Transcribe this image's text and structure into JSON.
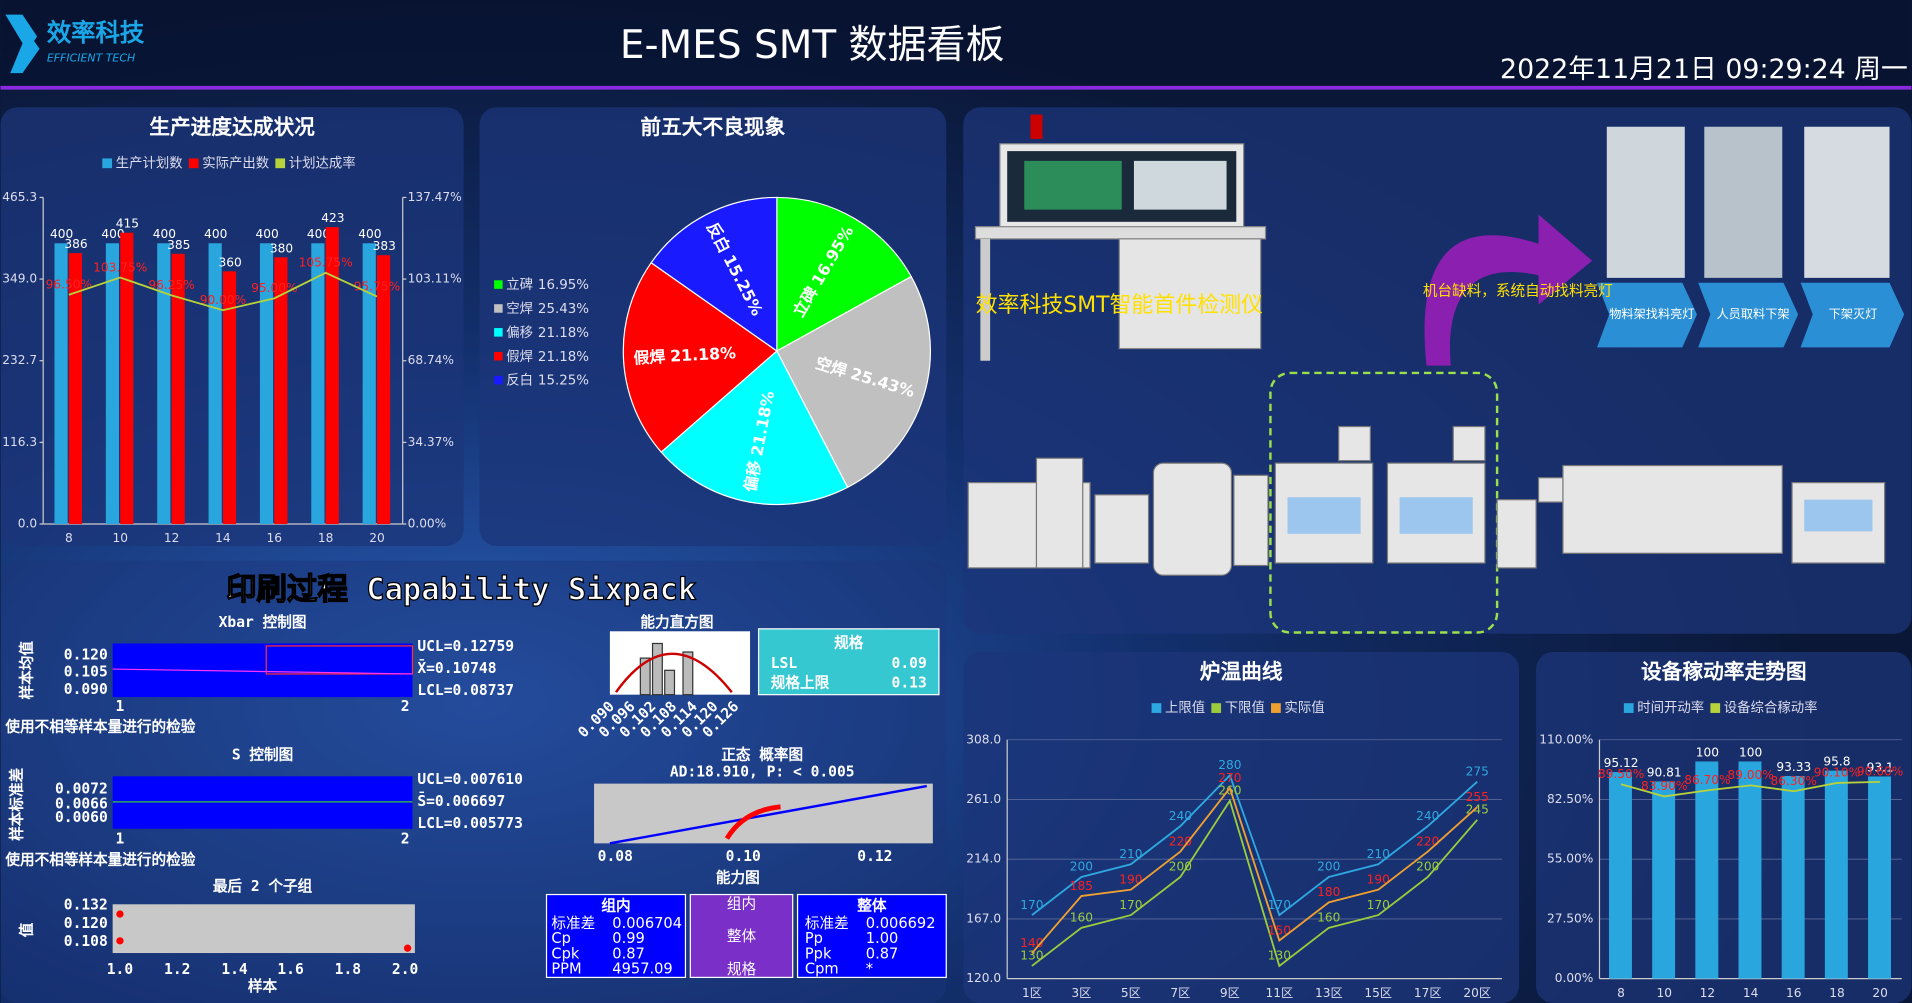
{
  "header": {
    "logo_cn": "效率科技",
    "logo_en": "EFFICIENT TECH",
    "title": "E-MES SMT 数据看板",
    "datetime": "2022年11月21日 09:29:24 周一"
  },
  "chart_data": [
    {
      "type": "combo",
      "title": "生产进度达成状况",
      "categories": [
        "8",
        "10",
        "12",
        "14",
        "16",
        "18",
        "20"
      ],
      "series": [
        {
          "name": "生产计划数",
          "type": "bar",
          "color": "#2aa6df",
          "values": [
            400,
            400,
            400,
            400,
            400,
            400,
            400
          ]
        },
        {
          "name": "实际产出数",
          "type": "bar",
          "color": "#ff0000",
          "values": [
            386,
            415,
            385,
            360,
            380,
            423,
            383
          ]
        },
        {
          "name": "计划达成率",
          "type": "line",
          "axis": "y2",
          "color": "#b7d23a",
          "label_color": "#ff2020",
          "values": [
            96.5,
            103.75,
            96.25,
            90,
            95,
            105.75,
            95.75
          ],
          "value_labels": [
            "96.50%",
            "103.75%",
            "96.25%",
            "90.00%",
            "95.00%",
            "105.75%",
            "95.75%"
          ]
        }
      ],
      "ylim": [
        0,
        465.3
      ],
      "yticks": [
        {
          "value": 0,
          "label": "0.0"
        },
        116.3,
        232.7,
        {
          "value": 349,
          "label": "349.0"
        },
        465.3
      ],
      "y2lim": [
        0,
        137.47
      ],
      "y2ticks": [
        {
          "value": 0,
          "label": "0.00%"
        },
        {
          "value": 34.37,
          "label": "34.37%"
        },
        {
          "value": 68.74,
          "label": "68.74%"
        },
        {
          "value": 103.11,
          "label": "103.11%"
        },
        {
          "value": 137.47,
          "label": "137.47%"
        }
      ],
      "grid": false,
      "legend": "top"
    },
    {
      "type": "pie",
      "title": "前五大不良现象",
      "categories": [
        "立碑",
        "空焊",
        "偏移",
        "假焊",
        "反白"
      ],
      "values": [
        16.95,
        25.43,
        21.18,
        21.18,
        15.25
      ],
      "value_labels": [
        "16.95%",
        "25.43%",
        "21.18%",
        "21.18%",
        "15.25%"
      ],
      "colors": [
        "#00ff00",
        "#c0c0c0",
        "#00ffff",
        "#ff0000",
        "#1a1aff"
      ],
      "legend": "left"
    },
    {
      "type": "line",
      "title": "炉温曲线",
      "categories": [
        "1区",
        "3区",
        "5区",
        "7区",
        "9区",
        "11区",
        "13区",
        "15区",
        "17区",
        "20区"
      ],
      "series": [
        {
          "name": "上限值",
          "color": "#2ea8e0",
          "values": [
            170,
            200,
            210,
            240,
            280,
            170,
            200,
            210,
            240,
            275
          ]
        },
        {
          "name": "下限值",
          "color": "#9ccc3c",
          "values": [
            130,
            160,
            170,
            200,
            260,
            130,
            160,
            170,
            200,
            245
          ]
        },
        {
          "name": "实际值",
          "color": "#f0a030",
          "label_color": "#ff2020",
          "values": [
            140,
            185,
            190,
            220,
            270,
            150,
            180,
            190,
            220,
            255
          ]
        }
      ],
      "ylim": [
        120,
        308
      ],
      "yticks": [
        {
          "value": 120,
          "label": "120.0"
        },
        {
          "value": 167,
          "label": "167.0"
        },
        {
          "value": 214,
          "label": "214.0"
        },
        {
          "value": 261,
          "label": "261.0"
        },
        {
          "value": 308,
          "label": "308.0"
        }
      ],
      "grid": true,
      "legend": "top"
    },
    {
      "type": "combo",
      "title": "设备稼动率走势图",
      "categories": [
        "8",
        "10",
        "12",
        "14",
        "16",
        "18",
        "20"
      ],
      "series": [
        {
          "name": "时间开动率",
          "type": "bar",
          "color": "#2aa6df",
          "values": [
            95.12,
            90.81,
            100,
            100,
            93.33,
            95.8,
            93.1
          ]
        },
        {
          "name": "设备综合稼动率",
          "type": "line",
          "color": "#b7d23a",
          "label_color": "#ff2020",
          "values": [
            89.5,
            83.9,
            86.7,
            89,
            86.3,
            90.1,
            90.6
          ],
          "value_labels": [
            "89.50%",
            "83.90%",
            "86.70%",
            "89.00%",
            "86.30%",
            "90.10%",
            "90.60%"
          ]
        }
      ],
      "ylim": [
        0,
        110
      ],
      "yticks": [
        {
          "value": 0,
          "label": "0.00%"
        },
        {
          "value": 27.5,
          "label": "27.50%"
        },
        {
          "value": 55,
          "label": "55.00%"
        },
        {
          "value": 82.5,
          "label": "82.50%"
        },
        {
          "value": 110,
          "label": "110.00%"
        }
      ],
      "grid": true,
      "legend": "top"
    }
  ],
  "line_panel": {
    "machine_caption": "效率科技SMT智能首件检测仪",
    "alert": "机台缺料，系统自动找料亮灯",
    "steps": [
      "物料架找料亮灯",
      "人员取料下架",
      "下架灭灯"
    ]
  },
  "sixpack": {
    "title": "印刷过程 Capability Sixpack",
    "xbar": {
      "title": "Xbar 控制图",
      "y_label": "样本均值",
      "ticks": [
        "0.120",
        "0.105",
        "0.090"
      ],
      "x_ticks": [
        "1",
        "2"
      ],
      "ucl": "UCL=0.12759",
      "center": "X̄=0.10748",
      "lcl": "LCL=0.08737",
      "note": "使用不相等样本量进行的检验"
    },
    "s": {
      "title": "S 控制图",
      "y_label": "样本标准差",
      "ticks": [
        "0.0072",
        "0.0066",
        "0.0060"
      ],
      "x_ticks": [
        "1",
        "2"
      ],
      "ucl": "UCL=0.007610",
      "center": "S̄=0.006697",
      "lcl": "LCL=0.005773",
      "note": "使用不相等样本量进行的检验"
    },
    "last": {
      "title": "最后 2 个子组",
      "y_label": "值",
      "ticks": [
        "0.132",
        "0.120",
        "0.108"
      ],
      "x_ticks": [
        "1.0",
        "1.2",
        "1.4",
        "1.6",
        "1.8",
        "2.0"
      ],
      "x_label": "样本"
    },
    "histogram": {
      "title": "能力直方图",
      "x_ticks": [
        "0.090",
        "0.096",
        "0.102",
        "0.108",
        "0.114",
        "0.120",
        "0.126"
      ]
    },
    "spec": {
      "title": "规格",
      "lsl_label": "LSL",
      "lsl": "0.09",
      "usl_label": "规格上限",
      "usl": "0.13"
    },
    "normal": {
      "title": "正态 概率图",
      "stats": "AD:18.910, P: < 0.005",
      "x_ticks": [
        "0.08",
        "0.10",
        "0.12"
      ]
    },
    "capability": {
      "title": "能力图",
      "legend": [
        "组内",
        "整体",
        "规格"
      ],
      "within": {
        "title": "组内",
        "rows": [
          [
            "标准差",
            "0.006704"
          ],
          [
            "Cp",
            "0.99"
          ],
          [
            "Cpk",
            "0.87"
          ],
          [
            "PPM",
            "4957.09"
          ]
        ]
      },
      "overall": {
        "title": "整体",
        "rows": [
          [
            "标准差",
            "0.006692"
          ],
          [
            "Pp",
            "1.00"
          ],
          [
            "Ppk",
            "0.87"
          ],
          [
            "Cpm",
            "*"
          ]
        ]
      }
    }
  }
}
